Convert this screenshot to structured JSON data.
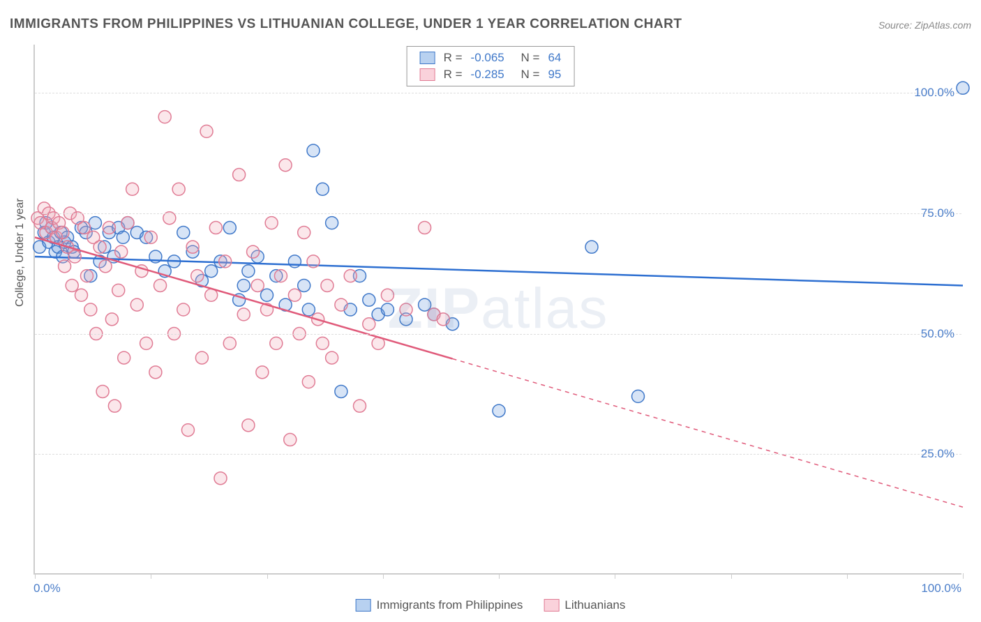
{
  "title": "IMMIGRANTS FROM PHILIPPINES VS LITHUANIAN COLLEGE, UNDER 1 YEAR CORRELATION CHART",
  "source": "Source: ZipAtlas.com",
  "ylabel": "College, Under 1 year",
  "watermark": {
    "bold": "ZIP",
    "light": "atlas"
  },
  "chart": {
    "type": "scatter-with-regression",
    "background_color": "#ffffff",
    "grid_color": "#dddddd",
    "axis_color": "#cccccc",
    "xlim": [
      0,
      100
    ],
    "ylim": [
      0,
      110
    ],
    "ygrid": [
      25,
      50,
      75,
      100
    ],
    "ytick_labels": [
      "25.0%",
      "50.0%",
      "75.0%",
      "100.0%"
    ],
    "xtick_positions": [
      0,
      12.5,
      25,
      37.5,
      50,
      62.5,
      75,
      87.5,
      100
    ],
    "xaxis_left_label": "0.0%",
    "xaxis_right_label": "100.0%",
    "label_color": "#4a7dc9",
    "label_fontsize": 17,
    "title_fontsize": 19,
    "title_color": "#555555",
    "marker_radius": 9,
    "marker_stroke_width": 1.5,
    "marker_fill_opacity": 0.28,
    "regression_line_width": 2.5,
    "series": [
      {
        "name": "Immigrants from Philippines",
        "color": "#6f9fe0",
        "stroke": "#3f78c9",
        "line_color": "#2d6fd1",
        "R": "-0.065",
        "N": "64",
        "regression": {
          "x1": 0,
          "y1": 66,
          "x2": 100,
          "y2": 60,
          "solid_until_x": 100
        },
        "points": [
          [
            0.5,
            68
          ],
          [
            1,
            71
          ],
          [
            1.2,
            73
          ],
          [
            1.5,
            69
          ],
          [
            1.8,
            72
          ],
          [
            2,
            70
          ],
          [
            2.2,
            67
          ],
          [
            2.5,
            68
          ],
          [
            2.8,
            71
          ],
          [
            3,
            66
          ],
          [
            3.2,
            69
          ],
          [
            3.5,
            70
          ],
          [
            4,
            68
          ],
          [
            4.2,
            67
          ],
          [
            5,
            72
          ],
          [
            5.5,
            71
          ],
          [
            6,
            62
          ],
          [
            6.5,
            73
          ],
          [
            7,
            65
          ],
          [
            7.5,
            68
          ],
          [
            8,
            71
          ],
          [
            8.5,
            66
          ],
          [
            9,
            72
          ],
          [
            9.5,
            70
          ],
          [
            10,
            73
          ],
          [
            11,
            71
          ],
          [
            12,
            70
          ],
          [
            13,
            66
          ],
          [
            14,
            63
          ],
          [
            15,
            65
          ],
          [
            16,
            71
          ],
          [
            17,
            67
          ],
          [
            18,
            61
          ],
          [
            19,
            63
          ],
          [
            20,
            65
          ],
          [
            21,
            72
          ],
          [
            22,
            57
          ],
          [
            22.5,
            60
          ],
          [
            23,
            63
          ],
          [
            24,
            66
          ],
          [
            25,
            58
          ],
          [
            26,
            62
          ],
          [
            27,
            56
          ],
          [
            28,
            65
          ],
          [
            29,
            60
          ],
          [
            29.5,
            55
          ],
          [
            30,
            88
          ],
          [
            31,
            80
          ],
          [
            32,
            73
          ],
          [
            33,
            38
          ],
          [
            34,
            55
          ],
          [
            35,
            62
          ],
          [
            36,
            57
          ],
          [
            37,
            54
          ],
          [
            38,
            55
          ],
          [
            40,
            53
          ],
          [
            42,
            56
          ],
          [
            43,
            54
          ],
          [
            45,
            52
          ],
          [
            50,
            34
          ],
          [
            60,
            68
          ],
          [
            65,
            37
          ],
          [
            100,
            101
          ]
        ]
      },
      {
        "name": "Lithuanians",
        "color": "#f2a8b8",
        "stroke": "#e07b94",
        "line_color": "#e05a7a",
        "R": "-0.285",
        "N": "95",
        "regression": {
          "x1": 0,
          "y1": 70,
          "x2": 100,
          "y2": 14,
          "solid_until_x": 45
        },
        "points": [
          [
            0.3,
            74
          ],
          [
            0.6,
            73
          ],
          [
            1,
            76
          ],
          [
            1.2,
            71
          ],
          [
            1.5,
            75
          ],
          [
            1.8,
            72
          ],
          [
            2,
            74
          ],
          [
            2.3,
            70
          ],
          [
            2.6,
            73
          ],
          [
            3,
            71
          ],
          [
            3.2,
            64
          ],
          [
            3.5,
            68
          ],
          [
            3.8,
            75
          ],
          [
            4,
            60
          ],
          [
            4.3,
            66
          ],
          [
            4.6,
            74
          ],
          [
            5,
            58
          ],
          [
            5.3,
            72
          ],
          [
            5.6,
            62
          ],
          [
            6,
            55
          ],
          [
            6.3,
            70
          ],
          [
            6.6,
            50
          ],
          [
            7,
            68
          ],
          [
            7.3,
            38
          ],
          [
            7.6,
            64
          ],
          [
            8,
            72
          ],
          [
            8.3,
            53
          ],
          [
            8.6,
            35
          ],
          [
            9,
            59
          ],
          [
            9.3,
            67
          ],
          [
            9.6,
            45
          ],
          [
            10,
            73
          ],
          [
            10.5,
            80
          ],
          [
            11,
            56
          ],
          [
            11.5,
            63
          ],
          [
            12,
            48
          ],
          [
            12.5,
            70
          ],
          [
            13,
            42
          ],
          [
            13.5,
            60
          ],
          [
            14,
            95
          ],
          [
            14.5,
            74
          ],
          [
            15,
            50
          ],
          [
            15.5,
            80
          ],
          [
            16,
            55
          ],
          [
            16.5,
            30
          ],
          [
            17,
            68
          ],
          [
            17.5,
            62
          ],
          [
            18,
            45
          ],
          [
            18.5,
            92
          ],
          [
            19,
            58
          ],
          [
            19.5,
            72
          ],
          [
            20,
            20
          ],
          [
            20.5,
            65
          ],
          [
            21,
            48
          ],
          [
            22,
            83
          ],
          [
            22.5,
            54
          ],
          [
            23,
            31
          ],
          [
            23.5,
            67
          ],
          [
            24,
            60
          ],
          [
            24.5,
            42
          ],
          [
            25,
            55
          ],
          [
            25.5,
            73
          ],
          [
            26,
            48
          ],
          [
            26.5,
            62
          ],
          [
            27,
            85
          ],
          [
            27.5,
            28
          ],
          [
            28,
            58
          ],
          [
            28.5,
            50
          ],
          [
            29,
            71
          ],
          [
            29.5,
            40
          ],
          [
            30,
            65
          ],
          [
            30.5,
            53
          ],
          [
            31,
            48
          ],
          [
            31.5,
            60
          ],
          [
            32,
            45
          ],
          [
            33,
            56
          ],
          [
            34,
            62
          ],
          [
            35,
            35
          ],
          [
            36,
            52
          ],
          [
            37,
            48
          ],
          [
            38,
            58
          ],
          [
            40,
            55
          ],
          [
            42,
            72
          ],
          [
            43,
            54
          ],
          [
            44,
            53
          ]
        ]
      }
    ]
  },
  "legend_top": {
    "rows": [
      {
        "swatch_fill": "#b8d1f0",
        "swatch_border": "#3f78c9",
        "r_label": "R =",
        "r_value": "-0.065",
        "n_label": "N =",
        "n_value": "64"
      },
      {
        "swatch_fill": "#fad2db",
        "swatch_border": "#e07b94",
        "r_label": "R =",
        "r_value": "-0.285",
        "n_label": "N =",
        "n_value": "95"
      }
    ],
    "label_color": "#555555",
    "value_color": "#3f78c9"
  },
  "legend_bottom": {
    "items": [
      {
        "swatch_fill": "#b8d1f0",
        "swatch_border": "#3f78c9",
        "label": "Immigrants from Philippines"
      },
      {
        "swatch_fill": "#fad2db",
        "swatch_border": "#e07b94",
        "label": "Lithuanians"
      }
    ]
  }
}
